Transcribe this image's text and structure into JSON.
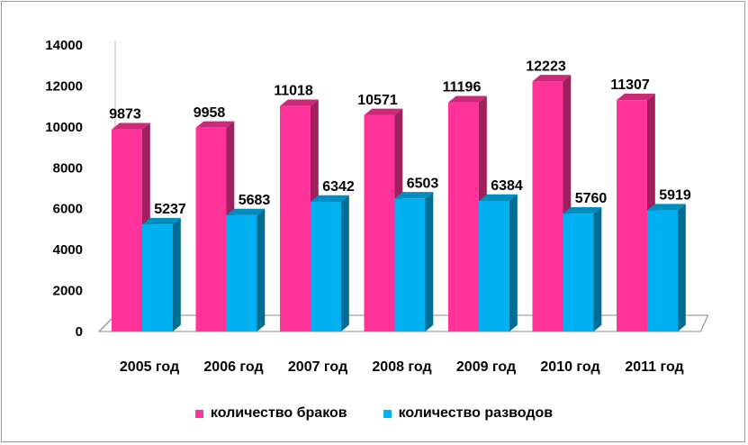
{
  "chart_data": {
    "type": "bar",
    "categories": [
      "2005 год",
      "2006 год",
      "2007 год",
      "2008 год",
      "2009 год",
      "2010 год",
      "2011 год"
    ],
    "series": [
      {
        "name": "количество браков",
        "values": [
          9873,
          9958,
          11018,
          10571,
          11196,
          12223,
          11307
        ],
        "color": "#ff3399"
      },
      {
        "name": "количество разводов",
        "values": [
          5237,
          5683,
          6342,
          6503,
          6384,
          5760,
          5919
        ],
        "color": "#00b0f0"
      }
    ],
    "title": "",
    "xlabel": "",
    "ylabel": "",
    "ylim": [
      0,
      14000
    ],
    "yticks": [
      0,
      2000,
      4000,
      6000,
      8000,
      10000,
      12000,
      14000
    ],
    "grid": false,
    "legend_position": "bottom",
    "style": "3d-clustered-column"
  }
}
